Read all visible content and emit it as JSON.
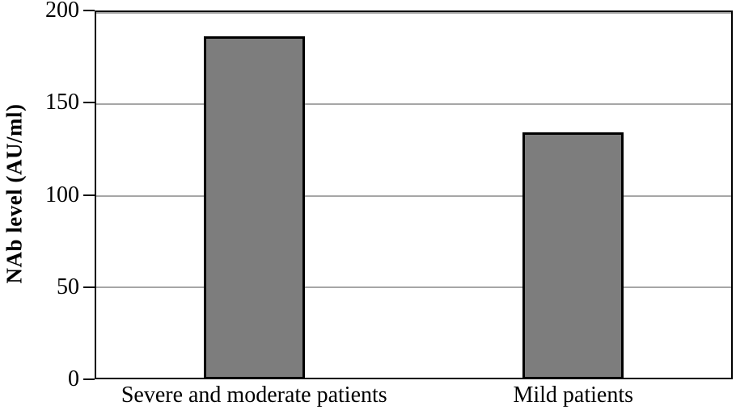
{
  "chart_data": {
    "type": "bar",
    "title": "",
    "xlabel": "",
    "ylabel": "NAb level (AU/ml)",
    "categories": [
      "Severe and moderate patients",
      "Mild patients"
    ],
    "values": [
      186,
      134
    ],
    "ylim": [
      0,
      200
    ],
    "yticks": [
      0,
      50,
      100,
      150,
      200
    ],
    "grid": true,
    "legend": false,
    "colors": {
      "bar_fill": "#7d7d7d",
      "bar_border": "#000000",
      "gridline": "#a6a6a6",
      "axis": "#000000",
      "background": "#ffffff"
    }
  }
}
